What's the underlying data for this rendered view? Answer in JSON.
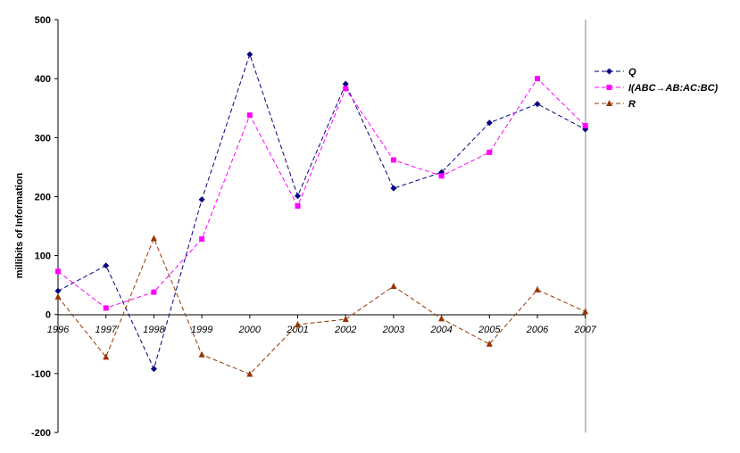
{
  "chart_data": {
    "type": "line",
    "title": "",
    "xlabel": "",
    "ylabel": "millibits of Information",
    "categories": [
      "1996",
      "1997",
      "1998",
      "1999",
      "2000",
      "2001",
      "2002",
      "2003",
      "2004",
      "2005",
      "2006",
      "2007"
    ],
    "ylim": [
      -200,
      500
    ],
    "yticks": [
      -200,
      -100,
      0,
      100,
      200,
      300,
      400,
      500
    ],
    "grid": false,
    "legend_position": "right",
    "series": [
      {
        "name": "Q",
        "color": "#000080",
        "marker": "diamond",
        "line_style": "dashed",
        "values": [
          40,
          83,
          -92,
          195,
          441,
          201,
          391,
          214,
          241,
          325,
          357,
          314
        ]
      },
      {
        "name": "I(ABC→AB:AC:BC)",
        "color": "#FF00FF",
        "marker": "square",
        "line_style": "dashed",
        "values": [
          73,
          11,
          38,
          128,
          338,
          184,
          383,
          262,
          235,
          275,
          400,
          320
        ]
      },
      {
        "name": "R",
        "color": "#993300",
        "marker": "triangle",
        "line_style": "dashed",
        "values": [
          30,
          -72,
          129,
          -68,
          -101,
          -17,
          -8,
          48,
          -7,
          -50,
          42,
          5
        ]
      }
    ]
  }
}
